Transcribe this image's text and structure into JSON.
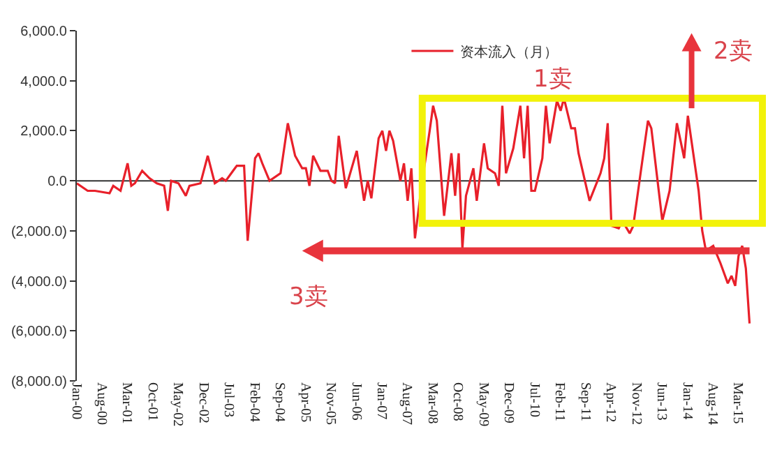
{
  "chart_data": {
    "type": "line",
    "legend": "top",
    "marker": "none",
    "line_style": "solid",
    "xlim": [
      "2000-01",
      "2015-08"
    ],
    "ylim": [
      -8000,
      6000
    ],
    "xticks": [
      {
        "value": "2000-01",
        "label": "Jan-00"
      },
      {
        "value": "2000-08",
        "label": "Aug-00"
      },
      {
        "value": "2001-03",
        "label": "Mar-01"
      },
      {
        "value": "2001-10",
        "label": "Oct-01"
      },
      {
        "value": "2002-05",
        "label": "May-02"
      },
      {
        "value": "2002-12",
        "label": "Dec-02"
      },
      {
        "value": "2003-07",
        "label": "Jul-03"
      },
      {
        "value": "2004-02",
        "label": "Feb-04"
      },
      {
        "value": "2004-09",
        "label": "Sep-04"
      },
      {
        "value": "2005-04",
        "label": "Apr-05"
      },
      {
        "value": "2005-11",
        "label": "Nov-05"
      },
      {
        "value": "2006-06",
        "label": "Jun-06"
      },
      {
        "value": "2007-01",
        "label": "Jan-07"
      },
      {
        "value": "2007-08",
        "label": "Aug-07"
      },
      {
        "value": "2008-03",
        "label": "Mar-08"
      },
      {
        "value": "2008-10",
        "label": "Oct-08"
      },
      {
        "value": "2009-05",
        "label": "May-09"
      },
      {
        "value": "2009-12",
        "label": "Dec-09"
      },
      {
        "value": "2010-07",
        "label": "Jul-10"
      },
      {
        "value": "2011-02",
        "label": "Feb-11"
      },
      {
        "value": "2011-09",
        "label": "Sep-11"
      },
      {
        "value": "2012-04",
        "label": "Apr-12"
      },
      {
        "value": "2012-11",
        "label": "Nov-12"
      },
      {
        "value": "2013-06",
        "label": "Jun-13"
      },
      {
        "value": "2014-01",
        "label": "Jan-14"
      },
      {
        "value": "2014-08",
        "label": "Aug-14"
      },
      {
        "value": "2015-03",
        "label": "Mar-15"
      }
    ],
    "yticks": [
      {
        "value": 6000,
        "label": "6,000.0"
      },
      {
        "value": 4000,
        "label": "4,000.0"
      },
      {
        "value": 2000,
        "label": "2,000.0"
      },
      {
        "value": 0,
        "label": "0.0"
      },
      {
        "value": -2000,
        "label": "(2,000.0)"
      },
      {
        "value": -4000,
        "label": "(4,000.0)"
      },
      {
        "value": -6000,
        "label": "(6,000.0)"
      },
      {
        "value": -8000,
        "label": "(8,000.0)"
      }
    ],
    "annotations": [
      "1卖",
      "2卖",
      "3卖"
    ],
    "ref_lines": [
      {
        "axis": "y",
        "value": 0,
        "color": "#333333"
      }
    ],
    "series": [
      {
        "name": "资本流入（月）",
        "color": "#e8202a",
        "x": [
          "2000-01",
          "2000-04",
          "2000-06",
          "2000-10",
          "2000-11",
          "2001-01",
          "2001-03",
          "2001-04",
          "2001-05",
          "2001-07",
          "2001-09",
          "2001-11",
          "2002-01",
          "2002-02",
          "2002-03",
          "2002-05",
          "2002-07",
          "2002-08",
          "2002-11",
          "2003-01",
          "2003-03",
          "2003-05",
          "2003-06",
          "2003-08",
          "2003-09",
          "2003-11",
          "2003-12",
          "2004-02",
          "2004-03",
          "2004-04",
          "2004-06",
          "2004-09",
          "2004-11",
          "2005-01",
          "2005-03",
          "2005-04",
          "2005-05",
          "2005-06",
          "2005-08",
          "2005-10",
          "2005-11",
          "2005-12",
          "2006-01",
          "2006-03",
          "2006-06",
          "2006-08",
          "2006-09",
          "2006-10",
          "2006-12",
          "2007-01",
          "2007-02",
          "2007-03",
          "2007-04",
          "2007-06",
          "2007-07",
          "2007-08",
          "2007-09",
          "2007-10",
          "2007-12",
          "2008-02",
          "2008-03",
          "2008-04",
          "2008-06",
          "2008-08",
          "2008-09",
          "2008-10",
          "2008-11",
          "2008-12",
          "2009-02",
          "2009-03",
          "2009-05",
          "2009-06",
          "2009-08",
          "2009-09",
          "2009-10",
          "2009-11",
          "2010-01",
          "2010-03",
          "2010-04",
          "2010-05",
          "2010-06",
          "2010-07",
          "2010-09",
          "2010-10",
          "2010-11",
          "2011-01",
          "2011-02",
          "2011-03",
          "2011-05",
          "2011-06",
          "2011-07",
          "2011-10",
          "2012-01",
          "2012-02",
          "2012-03",
          "2012-04",
          "2012-06",
          "2012-07",
          "2012-09",
          "2012-10",
          "2012-12",
          "2013-02",
          "2013-03",
          "2013-06",
          "2013-08",
          "2013-10",
          "2013-12",
          "2014-01",
          "2014-04",
          "2014-05",
          "2014-06",
          "2014-08",
          "2014-10",
          "2014-12",
          "2015-01",
          "2015-02",
          "2015-03",
          "2015-04",
          "2015-05",
          "2015-06"
        ],
        "values": [
          -100,
          -400,
          -400,
          -500,
          -200,
          -400,
          700,
          -200,
          -100,
          400,
          100,
          -100,
          -200,
          -1200,
          0,
          -100,
          -600,
          -200,
          -100,
          1000,
          -100,
          100,
          0,
          400,
          600,
          600,
          -2400,
          900,
          1100,
          700,
          0,
          300,
          2300,
          1000,
          500,
          500,
          -200,
          1000,
          400,
          400,
          0,
          -100,
          1800,
          -300,
          1200,
          -800,
          0,
          -700,
          1700,
          2000,
          1200,
          2000,
          1600,
          0,
          700,
          -800,
          500,
          -2300,
          0,
          2000,
          3000,
          2400,
          -1400,
          1100,
          -600,
          1100,
          -2700,
          -600,
          500,
          -800,
          1500,
          500,
          300,
          -200,
          3000,
          300,
          1300,
          3000,
          900,
          3000,
          -400,
          -400,
          900,
          3000,
          1500,
          3200,
          2800,
          3300,
          2100,
          2100,
          1100,
          -800,
          300,
          900,
          2300,
          -1800,
          -1900,
          -1600,
          -2100,
          -1800,
          300,
          2400,
          2100,
          -1600,
          -400,
          2300,
          900,
          2600,
          -400,
          -2000,
          -2800,
          -2600,
          -3300,
          -4100,
          -3800,
          -4200,
          -3000,
          -2600,
          -3500,
          -5700
        ]
      }
    ]
  }
}
